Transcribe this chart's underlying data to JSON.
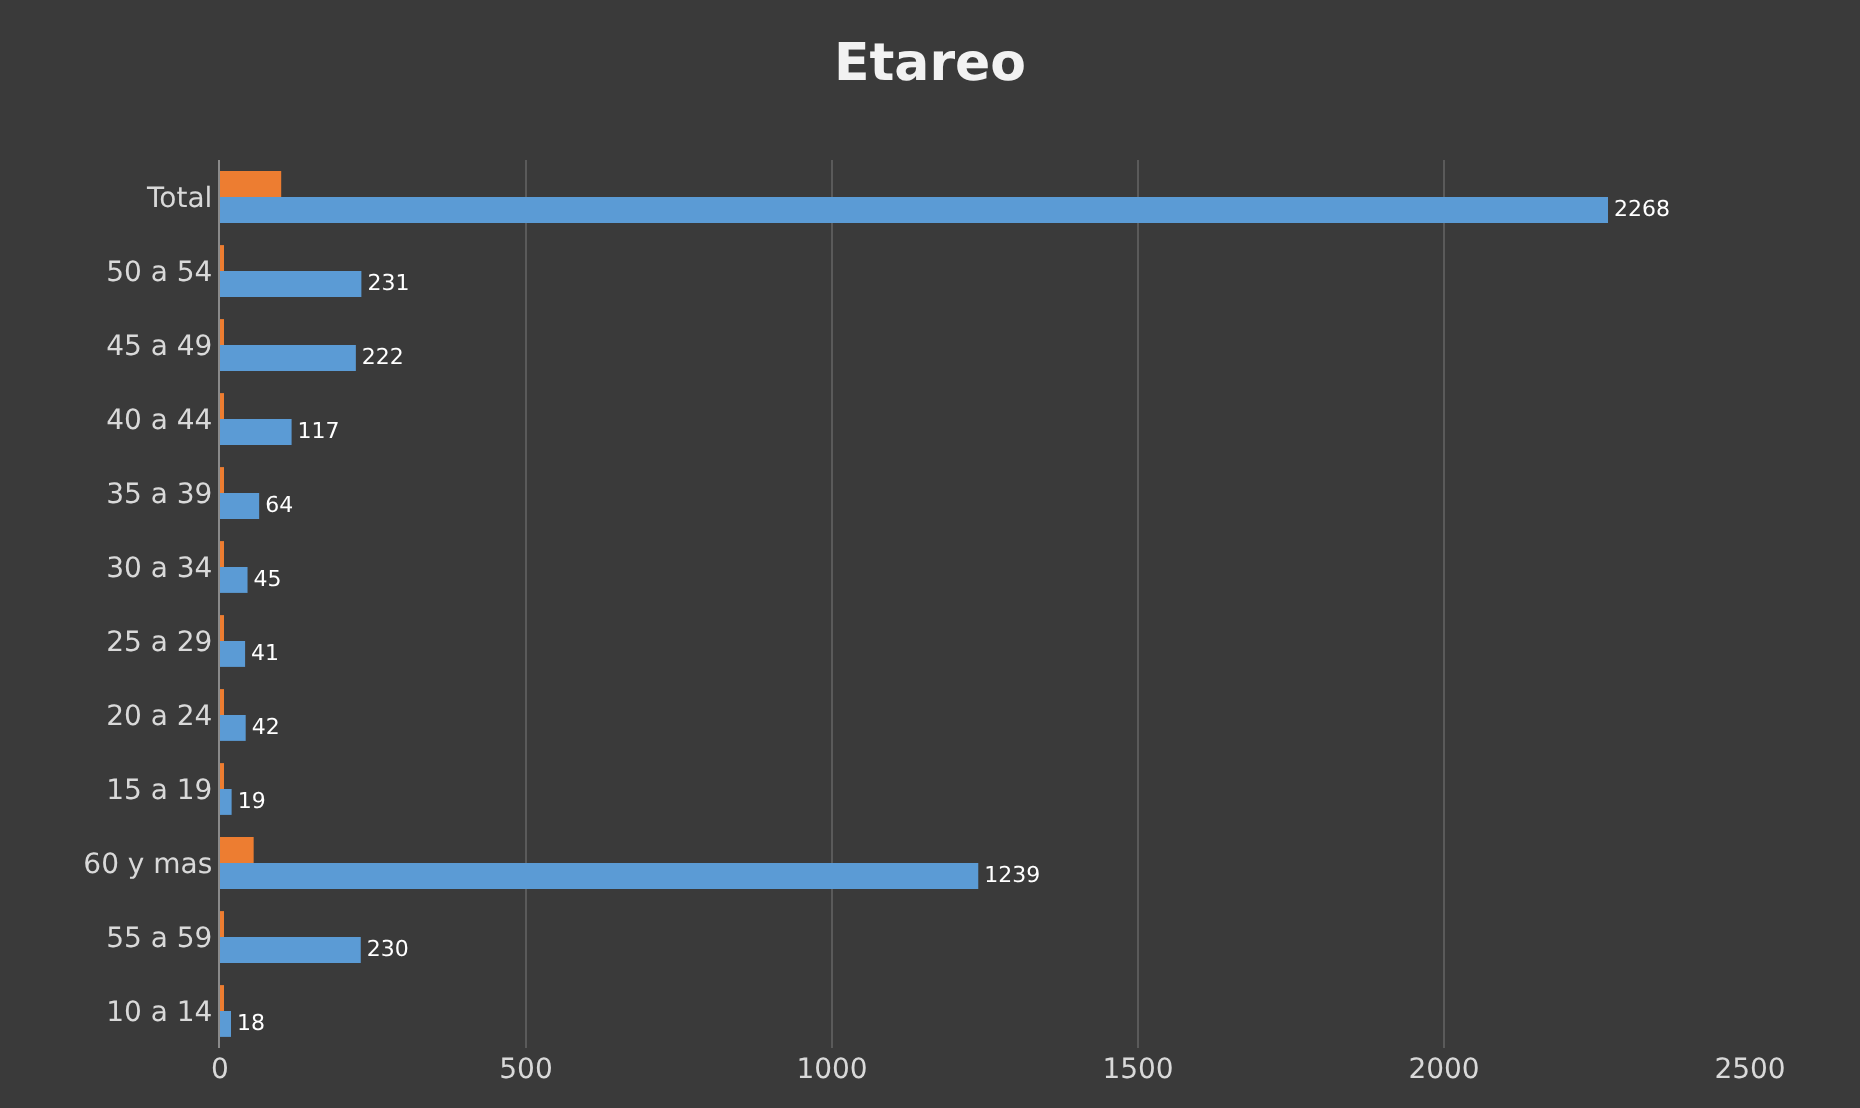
{
  "chart_data": {
    "type": "bar",
    "orientation": "horizontal",
    "title": "Etareo",
    "categories": [
      "Total",
      "50 a 54",
      "45 a 49",
      "40 a 44",
      "35 a 39",
      "30 a 34",
      "25 a 29",
      "20 a 24",
      "15 a 19",
      "60 y mas",
      "55 a 59",
      "10 a 14"
    ],
    "series": [
      {
        "color": "#ed7d31",
        "values": [
          100,
          4,
          4,
          4,
          4,
          4,
          4,
          4,
          4,
          55,
          4,
          4
        ]
      },
      {
        "color": "#5b9bd5",
        "values": [
          2268,
          231,
          222,
          117,
          64,
          45,
          41,
          42,
          19,
          1239,
          230,
          18
        ],
        "value_labels": [
          "2268",
          "231",
          "222",
          "117",
          "64",
          "45",
          "41",
          "42",
          "19",
          "1239",
          "230",
          "18"
        ]
      }
    ],
    "xlim": [
      0,
      2500
    ],
    "xticks": [
      0,
      500,
      1000,
      1500,
      2000,
      2500
    ],
    "grid": "x"
  }
}
